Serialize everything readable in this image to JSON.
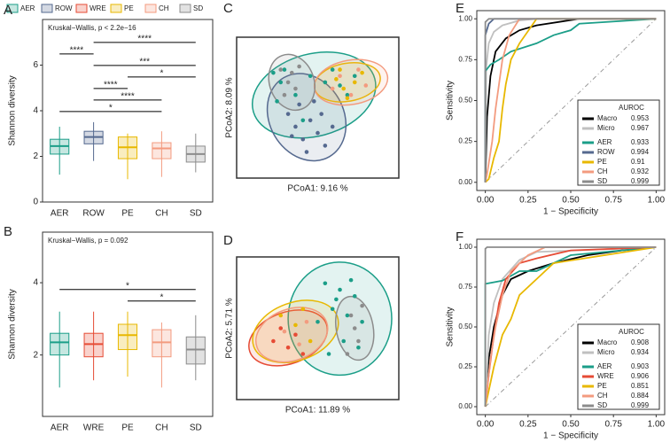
{
  "legend": [
    {
      "name": "AER",
      "color": "#1b9e88"
    },
    {
      "name": "ROW",
      "color": "#55698f"
    },
    {
      "name": "WRE",
      "color": "#e64b35"
    },
    {
      "name": "PE",
      "color": "#e8b800"
    },
    {
      "name": "CH",
      "color": "#f39b7f"
    },
    {
      "name": "SD",
      "color": "#8c8c8c"
    }
  ],
  "chart_data": [
    {
      "type": "box",
      "label": "A",
      "annotation": "Kruskal−Wallis, p < 2.2e−16",
      "ylabel": "Shannon diversity",
      "ylim": [
        0,
        8
      ],
      "yticks": [
        0,
        2,
        4,
        6
      ],
      "boxes": [
        {
          "name": "AER",
          "color": "#1b9e88",
          "low": 1.2,
          "q1": 2.1,
          "median": 2.45,
          "q3": 2.75,
          "high": 3.3
        },
        {
          "name": "ROW",
          "color": "#55698f",
          "low": 1.8,
          "q1": 2.55,
          "median": 2.85,
          "q3": 3.1,
          "high": 3.5
        },
        {
          "name": "PE",
          "color": "#e8b800",
          "low": 1.0,
          "q1": 1.9,
          "median": 2.4,
          "q3": 2.85,
          "high": 3.0
        },
        {
          "name": "CH",
          "color": "#f39b7f",
          "low": 1.1,
          "q1": 1.9,
          "median": 2.35,
          "q3": 2.6,
          "high": 3.1
        },
        {
          "name": "SD",
          "color": "#8c8c8c",
          "low": 1.3,
          "q1": 1.75,
          "median": 2.1,
          "q3": 2.45,
          "high": 3.0
        }
      ],
      "brackets": [
        {
          "from": "AER",
          "to": "CH",
          "label": "*"
        },
        {
          "from": "ROW",
          "to": "CH",
          "label": "****"
        },
        {
          "from": "ROW",
          "to": "PE",
          "label": "****"
        },
        {
          "from": "PE",
          "to": "SD",
          "label": "*"
        },
        {
          "from": "ROW",
          "to": "SD",
          "label": "***"
        },
        {
          "from": "AER",
          "to": "ROW",
          "label": "****"
        },
        {
          "from": "ROW",
          "to": "SD",
          "label": "****"
        }
      ]
    },
    {
      "type": "box",
      "label": "B",
      "annotation": "Kruskal−Wallis, p = 0.092",
      "ylabel": "Shannon diversity",
      "ylim": [
        0.3,
        5.4
      ],
      "yticks": [
        2,
        4
      ],
      "boxes": [
        {
          "name": "AER",
          "color": "#1b9e88",
          "low": 1.1,
          "q1": 2.0,
          "median": 2.35,
          "q3": 2.6,
          "high": 3.2
        },
        {
          "name": "WRE",
          "color": "#e64b35",
          "low": 1.3,
          "q1": 1.95,
          "median": 2.3,
          "q3": 2.6,
          "high": 3.2
        },
        {
          "name": "PE",
          "color": "#e8b800",
          "low": 1.4,
          "q1": 2.15,
          "median": 2.55,
          "q3": 2.85,
          "high": 3.2
        },
        {
          "name": "CH",
          "color": "#f39b7f",
          "low": 1.1,
          "q1": 1.95,
          "median": 2.35,
          "q3": 2.7,
          "high": 2.9
        },
        {
          "name": "SD",
          "color": "#8c8c8c",
          "low": 1.3,
          "q1": 1.75,
          "median": 2.15,
          "q3": 2.5,
          "high": 3.1
        }
      ],
      "brackets": [
        {
          "from": "PE",
          "to": "SD",
          "label": "*"
        },
        {
          "from": "AER",
          "to": "SD",
          "label": "*"
        }
      ]
    },
    {
      "type": "scatter",
      "label": "C",
      "xlabel": "PCoA1:  9.16 %",
      "ylabel": "PCoA2:  8.09 %",
      "xlim": [
        -1,
        1
      ],
      "ylim": [
        -1,
        1
      ],
      "series": [
        {
          "name": "AER",
          "color": "#1b9e88",
          "x": [
            -0.6,
            -0.5,
            -0.45,
            -0.3,
            -0.1,
            0.1,
            0.3,
            0.4,
            0.5,
            -0.55,
            -0.2,
            0.2
          ],
          "values": [
            0.55,
            0.4,
            0.6,
            0.2,
            0.5,
            0.4,
            0.35,
            0.2,
            0.5,
            0.1,
            -0.2,
            0.6
          ],
          "ellipse": {
            "cx": -0.05,
            "cy": 0.2,
            "rx": 0.85,
            "ry": 0.65,
            "angle": -15
          }
        },
        {
          "name": "ROW",
          "color": "#55698f",
          "x": [
            -0.4,
            -0.3,
            -0.2,
            -0.1,
            0,
            0.1,
            -0.25,
            -0.05,
            0.05,
            -0.15,
            0.2,
            -0.35
          ],
          "values": [
            -0.1,
            -0.3,
            -0.5,
            -0.2,
            -0.4,
            -0.6,
            0.05,
            0.1,
            -0.1,
            -0.7,
            -0.3,
            -0.45
          ],
          "ellipse": {
            "cx": -0.15,
            "cy": -0.15,
            "rx": 0.5,
            "ry": 0.72,
            "angle": -30
          }
        },
        {
          "name": "PE",
          "color": "#e8b800",
          "x": [
            0.25,
            0.35,
            0.5,
            0.6,
            0.4,
            0.3
          ],
          "values": [
            0.45,
            0.3,
            0.4,
            0.55,
            0.15,
            0.6
          ],
          "ellipse": {
            "cx": 0.4,
            "cy": 0.4,
            "rx": 0.45,
            "ry": 0.3,
            "angle": -10
          }
        },
        {
          "name": "CH",
          "color": "#f39b7f",
          "x": [
            0.3,
            0.55,
            0.65,
            0.2,
            0.45
          ],
          "values": [
            0.5,
            0.6,
            0.35,
            0.3,
            0.2
          ],
          "ellipse": {
            "cx": 0.45,
            "cy": 0.4,
            "rx": 0.5,
            "ry": 0.35,
            "angle": -10
          }
        },
        {
          "name": "SD",
          "color": "#8c8c8c",
          "x": [
            -0.5,
            -0.4,
            -0.3,
            -0.45,
            -0.35,
            -0.25
          ],
          "values": [
            0.6,
            0.4,
            0.3,
            0.2,
            0.55,
            0.65
          ],
          "ellipse": {
            "cx": -0.35,
            "cy": 0.4,
            "rx": 0.3,
            "ry": 0.45,
            "angle": -20
          }
        }
      ]
    },
    {
      "type": "scatter",
      "label": "D",
      "xlabel": "PCoA1:  11.89 %",
      "ylabel": "PCoA2:  5.71 %",
      "xlim": [
        -1,
        1
      ],
      "ylim": [
        -1,
        1
      ],
      "series": [
        {
          "name": "AER",
          "color": "#1b9e88",
          "x": [
            0.1,
            0.3,
            0.5,
            0.2,
            0.4,
            0.6,
            0.0,
            0.35,
            0.55,
            0.25,
            0.45,
            0.15
          ],
          "values": [
            0.7,
            0.6,
            0.5,
            0.3,
            0.2,
            0.1,
            0.1,
            -0.2,
            -0.3,
            0.45,
            0.75,
            -0.4
          ],
          "ellipse": {
            "cx": 0.3,
            "cy": 0.15,
            "rx": 0.7,
            "ry": 0.88,
            "angle": 0
          }
        },
        {
          "name": "WRE",
          "color": "#e64b35",
          "x": [
            -0.6,
            -0.5,
            -0.4,
            -0.3,
            -0.2
          ],
          "values": [
            -0.2,
            0.0,
            -0.3,
            -0.1,
            -0.4
          ],
          "ellipse": {
            "cx": -0.4,
            "cy": -0.15,
            "rx": 0.55,
            "ry": 0.4,
            "angle": -20
          }
        },
        {
          "name": "PE",
          "color": "#e8b800",
          "x": [
            -0.5,
            -0.3,
            -0.1,
            -0.2
          ],
          "values": [
            0.2,
            0.05,
            -0.2,
            0.3
          ],
          "ellipse": {
            "cx": -0.3,
            "cy": -0.05,
            "rx": 0.6,
            "ry": 0.45,
            "angle": -20
          }
        },
        {
          "name": "CH",
          "color": "#f39b7f",
          "x": [
            -0.45,
            -0.25,
            -0.15
          ],
          "values": [
            -0.05,
            -0.25,
            0.1
          ],
          "ellipse": {
            "cx": -0.35,
            "cy": -0.1,
            "rx": 0.5,
            "ry": 0.4,
            "angle": -20
          }
        },
        {
          "name": "SD",
          "color": "#8c8c8c",
          "x": [
            0.45,
            0.5,
            0.55,
            0.6,
            0.4
          ],
          "values": [
            0.2,
            0.0,
            -0.2,
            0.35,
            -0.4
          ],
          "ellipse": {
            "cx": 0.5,
            "cy": 0,
            "rx": 0.25,
            "ry": 0.5,
            "angle": -10
          }
        }
      ]
    },
    {
      "type": "roc",
      "label": "E",
      "xlabel": "1 − Specificity",
      "ylabel": "Sensitivity",
      "legend_title": "AUROC",
      "xlim": [
        -0.05,
        1.05
      ],
      "ylim": [
        -0.05,
        1.05
      ],
      "xticks": [
        {
          "value": 0,
          "label": "0.00"
        },
        {
          "value": 0.25,
          "label": "0.25"
        },
        {
          "value": 0.5,
          "label": "0.50"
        },
        {
          "value": 0.75,
          "label": "0.75"
        },
        {
          "value": 1,
          "label": "1.00"
        }
      ],
      "yticks": [
        {
          "value": 0,
          "label": "0.00"
        },
        {
          "value": 0.25,
          "label": "0.25"
        },
        {
          "value": 0.5,
          "label": "0.50"
        },
        {
          "value": 0.75,
          "label": "0.75"
        },
        {
          "value": 1,
          "label": "1.00"
        }
      ],
      "series": [
        {
          "name": "Macro",
          "color": "#000000",
          "auroc": 0.953,
          "x": [
            0,
            0.01,
            0.03,
            0.06,
            0.12,
            0.2,
            0.3,
            0.55,
            1
          ],
          "values": [
            0,
            0.4,
            0.65,
            0.8,
            0.88,
            0.93,
            0.96,
            1,
            1
          ]
        },
        {
          "name": "Micro",
          "color": "#c0c0c0",
          "auroc": 0.967,
          "x": [
            0,
            0.005,
            0.02,
            0.05,
            0.1,
            0.2,
            0.3,
            1
          ],
          "values": [
            0,
            0.7,
            0.85,
            0.92,
            0.96,
            0.99,
            1,
            1
          ]
        },
        {
          "name": "AER",
          "color": "#1b9e88",
          "auroc": 0.933,
          "x": [
            0,
            0,
            0.03,
            0.08,
            0.15,
            0.3,
            0.4,
            0.5,
            0.55,
            1
          ],
          "values": [
            0,
            0.68,
            0.72,
            0.75,
            0.8,
            0.85,
            0.9,
            0.93,
            0.97,
            1
          ]
        },
        {
          "name": "ROW",
          "color": "#55698f",
          "auroc": 0.994,
          "x": [
            0,
            0,
            0.02,
            0.05,
            1
          ],
          "values": [
            0,
            0.9,
            0.97,
            1,
            1
          ]
        },
        {
          "name": "PE",
          "color": "#e8b800",
          "auroc": 0.91,
          "x": [
            0,
            0.02,
            0.05,
            0.08,
            0.1,
            0.12,
            0.15,
            0.2,
            0.3,
            1
          ],
          "values": [
            0,
            0.02,
            0.15,
            0.25,
            0.45,
            0.6,
            0.75,
            0.85,
            1,
            1
          ]
        },
        {
          "name": "CH",
          "color": "#f39b7f",
          "auroc": 0.932,
          "x": [
            0,
            0.01,
            0.04,
            0.06,
            0.08,
            0.1,
            0.14,
            0.2,
            1
          ],
          "values": [
            0,
            0.05,
            0.25,
            0.45,
            0.6,
            0.75,
            0.9,
            1,
            1
          ]
        },
        {
          "name": "SD",
          "color": "#8c8c8c",
          "auroc": 0.999,
          "x": [
            0,
            0,
            0.02,
            1
          ],
          "values": [
            0,
            0.98,
            1,
            1
          ]
        }
      ]
    },
    {
      "type": "roc",
      "label": "F",
      "xlabel": "1 − Specificity",
      "ylabel": "Sensitivity",
      "legend_title": "AUROC",
      "xlim": [
        -0.05,
        1.05
      ],
      "ylim": [
        -0.05,
        1.05
      ],
      "xticks": [
        {
          "value": 0,
          "label": "0.00"
        },
        {
          "value": 0.25,
          "label": "0.25"
        },
        {
          "value": 0.5,
          "label": "0.50"
        },
        {
          "value": 0.75,
          "label": "0.75"
        },
        {
          "value": 1,
          "label": "1.00"
        }
      ],
      "yticks": [
        {
          "value": 0,
          "label": "0.00"
        },
        {
          "value": 0.25,
          "label": "0.25"
        },
        {
          "value": 0.5,
          "label": "0.50"
        },
        {
          "value": 0.75,
          "label": "0.75"
        },
        {
          "value": 1,
          "label": "1.00"
        }
      ],
      "series": [
        {
          "name": "Macro",
          "color": "#000000",
          "auroc": 0.908,
          "x": [
            0,
            0.02,
            0.05,
            0.1,
            0.15,
            0.25,
            0.4,
            0.6,
            0.8,
            1
          ],
          "values": [
            0,
            0.3,
            0.5,
            0.7,
            0.8,
            0.85,
            0.9,
            0.95,
            0.98,
            1
          ]
        },
        {
          "name": "Micro",
          "color": "#c0c0c0",
          "auroc": 0.934,
          "x": [
            0,
            0.02,
            0.05,
            0.1,
            0.2,
            0.3,
            1
          ],
          "values": [
            0,
            0.45,
            0.65,
            0.8,
            0.92,
            0.97,
            1
          ]
        },
        {
          "name": "AER",
          "color": "#1b9e88",
          "auroc": 0.903,
          "x": [
            0,
            0,
            0.1,
            0.2,
            0.3,
            0.4,
            0.5,
            0.7,
            0.9,
            1
          ],
          "values": [
            0,
            0.77,
            0.79,
            0.85,
            0.85,
            0.9,
            0.95,
            0.97,
            0.99,
            1
          ]
        },
        {
          "name": "WRE",
          "color": "#e64b35",
          "auroc": 0.906,
          "x": [
            0,
            0.02,
            0.05,
            0.08,
            0.12,
            0.2,
            0.3,
            0.5,
            1
          ],
          "values": [
            0,
            0.2,
            0.45,
            0.65,
            0.8,
            0.9,
            0.93,
            0.98,
            1
          ]
        },
        {
          "name": "PE",
          "color": "#e8b800",
          "auroc": 0.851,
          "x": [
            0,
            0.05,
            0.1,
            0.15,
            0.2,
            0.3,
            0.4,
            1
          ],
          "values": [
            0,
            0.25,
            0.45,
            0.55,
            0.7,
            0.8,
            0.9,
            1
          ]
        },
        {
          "name": "CH",
          "color": "#f39b7f",
          "auroc": 0.884,
          "x": [
            0,
            0.03,
            0.06,
            0.1,
            0.15,
            0.25,
            0.35,
            1
          ],
          "values": [
            0,
            0.3,
            0.5,
            0.7,
            0.85,
            0.95,
            1,
            1
          ]
        },
        {
          "name": "SD",
          "color": "#8c8c8c",
          "auroc": 0.999,
          "x": [
            0,
            0,
            0.01,
            1
          ],
          "values": [
            0,
            0.99,
            1,
            1
          ]
        }
      ]
    }
  ]
}
